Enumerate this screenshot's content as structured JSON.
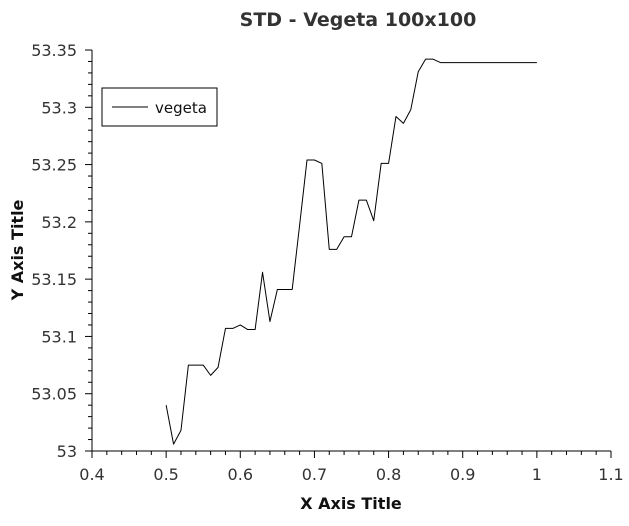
{
  "chart_data": {
    "type": "line",
    "title": "STD - Vegeta 100x100",
    "xlabel": "X Axis Title",
    "ylabel": "Y Axis Title",
    "xlim": [
      0.4,
      1.1
    ],
    "ylim": [
      53,
      53.35
    ],
    "x_ticks": [
      "0.4",
      "0.5",
      "0.6",
      "0.7",
      "0.8",
      "0.9",
      "1",
      "1.1"
    ],
    "y_ticks": [
      "53",
      "53.05",
      "53.1",
      "53.15",
      "53.2",
      "53.25",
      "53.3",
      "53.35"
    ],
    "x_tick_values": [
      0.4,
      0.5,
      0.6,
      0.7,
      0.8,
      0.9,
      1.0,
      1.1
    ],
    "y_tick_values": [
      53,
      53.05,
      53.1,
      53.15,
      53.2,
      53.25,
      53.3,
      53.35
    ],
    "grid": false,
    "legend_position": "top-left",
    "series": [
      {
        "name": "vegeta",
        "color": "#000000",
        "x": [
          0.5,
          0.51,
          0.52,
          0.53,
          0.54,
          0.55,
          0.56,
          0.57,
          0.58,
          0.59,
          0.6,
          0.61,
          0.62,
          0.63,
          0.64,
          0.65,
          0.66,
          0.67,
          0.68,
          0.69,
          0.7,
          0.71,
          0.72,
          0.73,
          0.74,
          0.75,
          0.76,
          0.77,
          0.78,
          0.79,
          0.8,
          0.81,
          0.82,
          0.83,
          0.84,
          0.85,
          0.86,
          0.87,
          0.88,
          0.89,
          0.9,
          0.91,
          0.92,
          0.93,
          0.94,
          0.95,
          0.96,
          0.97,
          0.98,
          0.99,
          1.0
        ],
        "values": [
          53.04,
          53.006,
          53.018,
          53.075,
          53.075,
          53.075,
          53.066,
          53.073,
          53.107,
          53.107,
          53.11,
          53.106,
          53.106,
          53.156,
          53.113,
          53.141,
          53.141,
          53.141,
          53.197,
          53.254,
          53.254,
          53.251,
          53.176,
          53.176,
          53.187,
          53.187,
          53.219,
          53.219,
          53.201,
          53.251,
          53.251,
          53.292,
          53.286,
          53.298,
          53.331,
          53.342,
          53.342,
          53.339,
          53.339,
          53.339,
          53.339,
          53.339,
          53.339,
          53.339,
          53.339,
          53.339,
          53.339,
          53.339,
          53.339,
          53.339,
          53.339
        ]
      }
    ]
  }
}
